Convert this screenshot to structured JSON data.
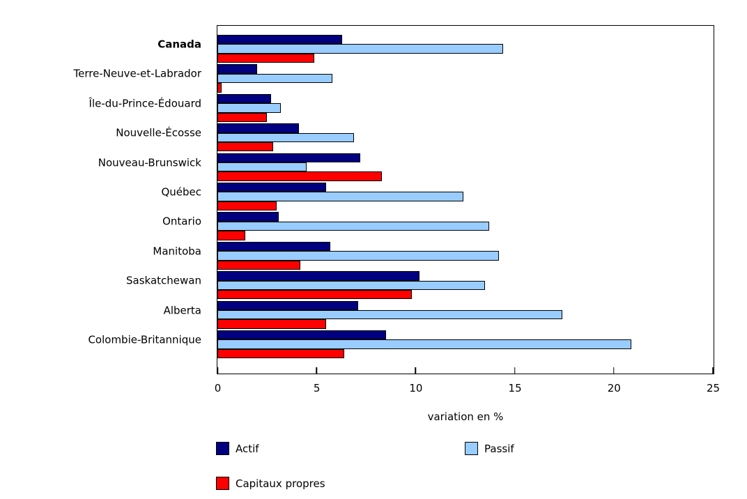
{
  "chart_data": {
    "type": "bar",
    "orientation": "horizontal",
    "title": "",
    "xlabel": "variation en %",
    "ylabel": "",
    "xlim": [
      0,
      25
    ],
    "xticks": [
      0,
      5,
      10,
      15,
      20,
      25
    ],
    "grid": false,
    "legend_position": "bottom",
    "plot_border": true,
    "categories": [
      "Canada",
      "Terre-Neuve-et-Labrador",
      "Île-du-Prince-Édouard",
      "Nouvelle-Écosse",
      "Nouveau-Brunswick",
      "Québec",
      "Ontario",
      "Manitoba",
      "Saskatchewan",
      "Alberta",
      "Colombie-Britannique"
    ],
    "bold_categories": [
      "Canada"
    ],
    "series": [
      {
        "name": "Actif",
        "color": "#000080",
        "values": [
          6.3,
          2.0,
          2.7,
          4.1,
          7.2,
          5.5,
          3.1,
          5.7,
          10.2,
          7.1,
          8.5
        ]
      },
      {
        "name": "Passif",
        "color": "#99CCFF",
        "values": [
          14.4,
          5.8,
          3.2,
          6.9,
          4.5,
          12.4,
          13.7,
          14.2,
          13.5,
          17.4,
          20.9
        ]
      },
      {
        "name": "Capitaux propres",
        "color": "#FF0000",
        "values": [
          4.9,
          0.2,
          2.5,
          2.8,
          8.3,
          3.0,
          1.4,
          4.2,
          9.8,
          5.5,
          6.4
        ]
      }
    ],
    "bar_border_color": "#000000"
  }
}
